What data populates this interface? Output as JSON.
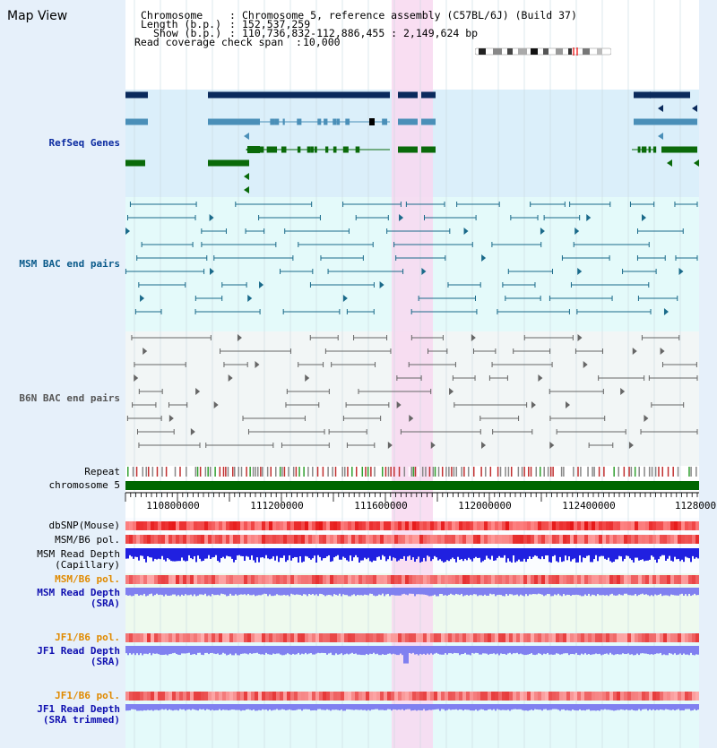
{
  "app": {
    "title": "Map View"
  },
  "info": {
    "chromosome_key": "Chromosome",
    "chromosome_value": "Chromosome 5, reference assembly (C57BL/6J) (Build 37)",
    "length_key": "Length (b.p.)",
    "length_value": "152,537,259",
    "show_key": "Show (b.p.)",
    "show_value": "110,736,832-112,886,455 : 2,149,624 bp",
    "coverage_key": "Read coverage check span",
    "coverage_value": "10,000"
  },
  "tracks": {
    "refseq": {
      "label": "RefSeq Genes",
      "color": "#0a2aa0"
    },
    "msm_bac": {
      "label": "MSM BAC end pairs",
      "color": "#0a5a8a"
    },
    "b6n_bac": {
      "label": "B6N BAC end pairs",
      "color": "#555555"
    },
    "repeat": {
      "label": "Repeat"
    },
    "chrom": {
      "label": "chromosome 5"
    },
    "dbsnp": {
      "label": "dbSNP(Mouse)"
    },
    "msm_b6_pol_1": {
      "label": "MSM/B6 pol."
    },
    "msm_depth_cap": {
      "label": "MSM Read Depth\n(Capillary)"
    },
    "msm_b6_pol_2": {
      "label": "MSM/B6 pol.",
      "color": "#e08a00"
    },
    "msm_depth_sra": {
      "label": "MSM Read Depth\n(SRA)",
      "color": "#1010b0"
    },
    "jf1_b6_pol_1": {
      "label": "JF1/B6 pol.",
      "color": "#e08a00"
    },
    "jf1_depth_sra": {
      "label": "JF1 Read Depth\n(SRA)",
      "color": "#1010b0"
    },
    "jf1_b6_pol_2": {
      "label": "JF1/B6 pol.",
      "color": "#e08a00"
    },
    "jf1_depth_trim": {
      "label": "JF1 Read Depth\n(SRA trimmed)",
      "color": "#1010b0"
    }
  },
  "axis": {
    "ticks": [
      "110800000",
      "111200000",
      "111600000",
      "112000000",
      "112400000",
      "1128000"
    ]
  },
  "colors": {
    "highlight": "#f8d8f0",
    "gene_dark": "#0a2a5c",
    "gene_mid": "#4a8fb8",
    "gene_green": "#0a6a0a",
    "chrom_bar": "#006600",
    "depth_blue": "#2020e0",
    "depth_light": "#8080f0"
  }
}
